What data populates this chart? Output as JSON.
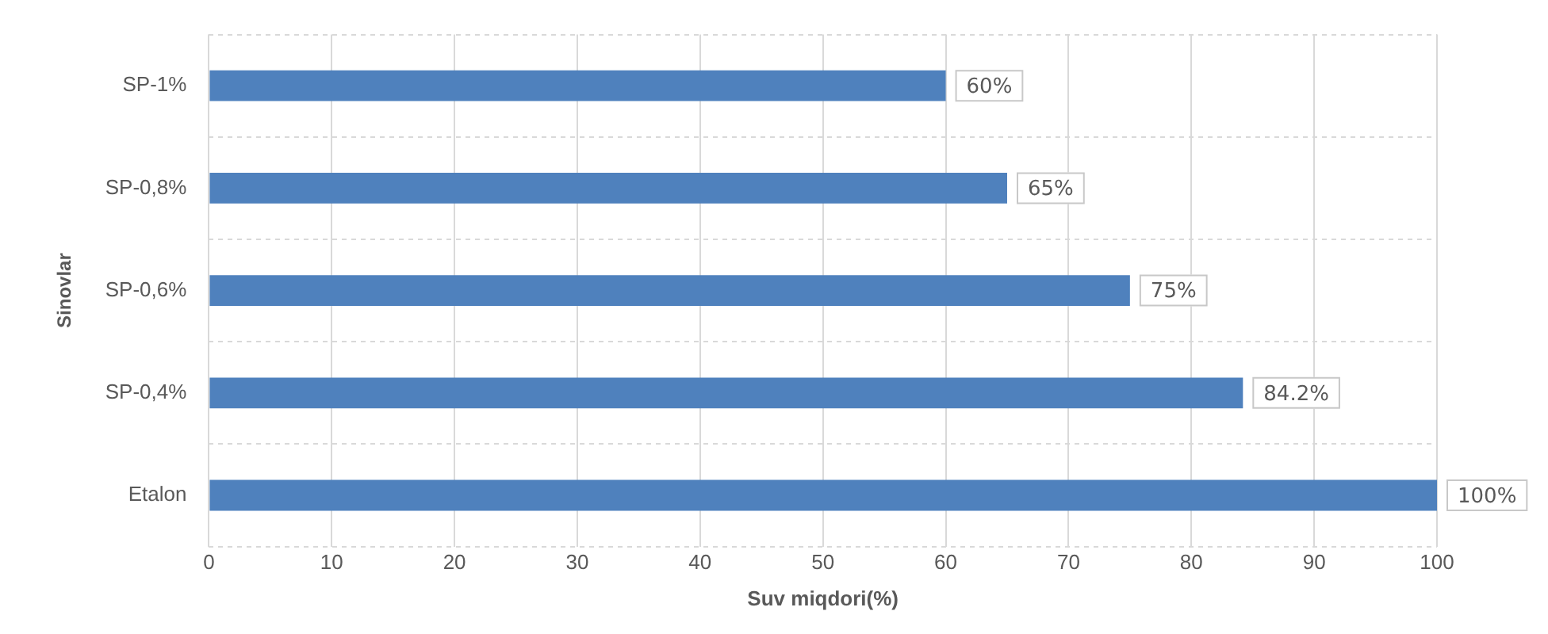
{
  "chart_data": {
    "type": "bar",
    "orientation": "horizontal",
    "xlabel": "Suv miqdori(%)",
    "ylabel": "Sinovlar",
    "categories": [
      "SP-1%",
      "SP-0,8%",
      "SP-0,6%",
      "SP-0,4%",
      "Etalon"
    ],
    "values": [
      60,
      65,
      75,
      84.2,
      100
    ],
    "value_labels": [
      "60%",
      "65%",
      "75%",
      "84.2%",
      "100%"
    ],
    "color": "#4f81bd",
    "xlim": [
      0,
      100
    ],
    "xticks": [
      0,
      10,
      20,
      30,
      40,
      50,
      60,
      70,
      80,
      90,
      100
    ],
    "grid": true,
    "legend": false
  }
}
